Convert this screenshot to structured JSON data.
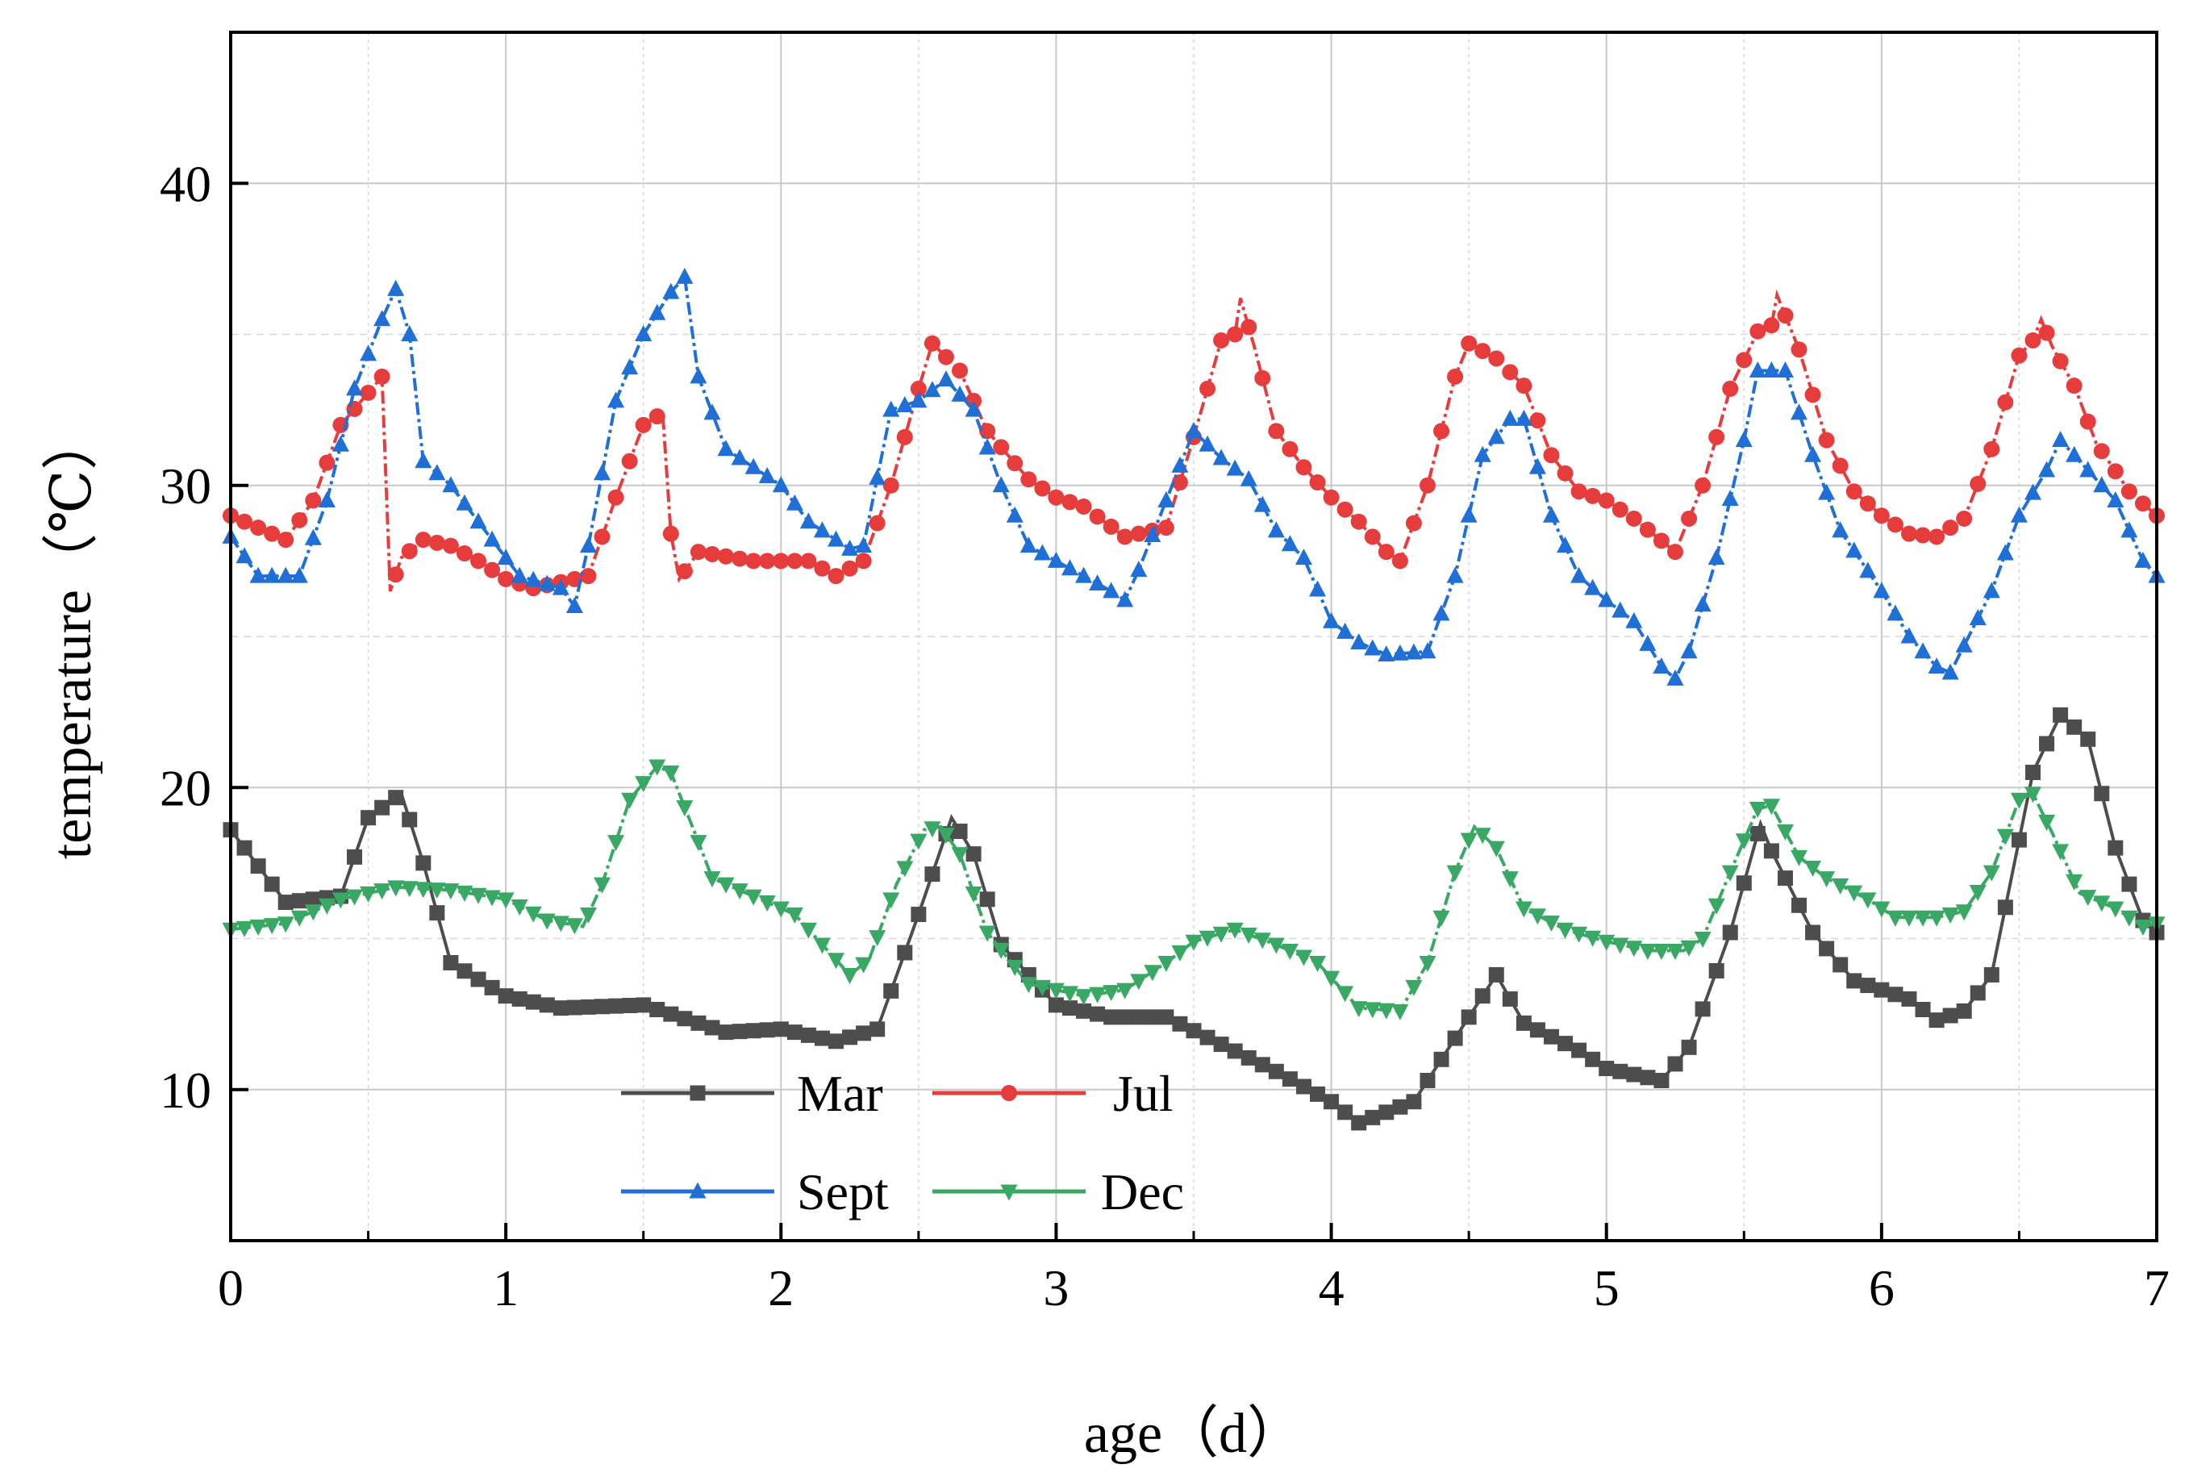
{
  "chart_data": {
    "type": "line",
    "title": "",
    "xlabel": "age（d）",
    "ylabel": "temperature（℃）",
    "xlim": [
      0,
      7
    ],
    "ylim": [
      5,
      45
    ],
    "xticks": [
      0,
      1,
      2,
      3,
      4,
      5,
      6,
      7
    ],
    "yticks": [
      10,
      20,
      30,
      40
    ],
    "grid": true,
    "legend_position": "bottom-center",
    "series": [
      {
        "name": "Mar",
        "color": "#4d4d4d",
        "marker": "square",
        "points": [
          [
            0,
            18.6
          ],
          [
            0.2,
            16.2
          ],
          [
            0.4,
            16.4
          ],
          [
            0.5,
            19.0
          ],
          [
            0.62,
            19.8
          ],
          [
            0.7,
            17.5
          ],
          [
            0.8,
            14.2
          ],
          [
            1.0,
            13.1
          ],
          [
            1.2,
            12.7
          ],
          [
            1.5,
            12.8
          ],
          [
            1.8,
            11.9
          ],
          [
            2.0,
            12.0
          ],
          [
            2.2,
            11.6
          ],
          [
            2.35,
            12.0
          ],
          [
            2.5,
            15.8
          ],
          [
            2.62,
            19.0
          ],
          [
            2.7,
            17.8
          ],
          [
            2.8,
            14.8
          ],
          [
            3.0,
            12.8
          ],
          [
            3.2,
            12.4
          ],
          [
            3.4,
            12.4
          ],
          [
            3.6,
            11.5
          ],
          [
            3.8,
            10.6
          ],
          [
            4.0,
            9.6
          ],
          [
            4.1,
            8.9
          ],
          [
            4.3,
            9.6
          ],
          [
            4.5,
            12.4
          ],
          [
            4.6,
            13.8
          ],
          [
            4.7,
            12.2
          ],
          [
            4.9,
            11.3
          ],
          [
            5.0,
            10.7
          ],
          [
            5.2,
            10.3
          ],
          [
            5.3,
            11.4
          ],
          [
            5.45,
            15.2
          ],
          [
            5.56,
            18.8
          ],
          [
            5.6,
            17.9
          ],
          [
            5.75,
            15.2
          ],
          [
            5.9,
            13.6
          ],
          [
            6.1,
            13.0
          ],
          [
            6.2,
            12.3
          ],
          [
            6.3,
            12.6
          ],
          [
            6.4,
            13.8
          ],
          [
            6.55,
            20.5
          ],
          [
            6.65,
            22.4
          ],
          [
            6.75,
            21.6
          ],
          [
            6.85,
            18.0
          ],
          [
            6.95,
            15.6
          ],
          [
            7.0,
            15.2
          ]
        ]
      },
      {
        "name": "Jul",
        "color": "#e63c3c",
        "marker": "circle",
        "points": [
          [
            0,
            29.0
          ],
          [
            0.2,
            28.2
          ],
          [
            0.3,
            29.5
          ],
          [
            0.4,
            32.0
          ],
          [
            0.55,
            33.6
          ],
          [
            0.58,
            26.5
          ],
          [
            0.62,
            27.6
          ],
          [
            0.7,
            28.2
          ],
          [
            0.8,
            28.0
          ],
          [
            0.9,
            27.5
          ],
          [
            1.0,
            26.9
          ],
          [
            1.1,
            26.6
          ],
          [
            1.3,
            27.0
          ],
          [
            1.4,
            29.6
          ],
          [
            1.5,
            32.0
          ],
          [
            1.57,
            32.4
          ],
          [
            1.6,
            28.4
          ],
          [
            1.63,
            26.9
          ],
          [
            1.7,
            27.8
          ],
          [
            1.9,
            27.5
          ],
          [
            2.1,
            27.5
          ],
          [
            2.2,
            27.0
          ],
          [
            2.3,
            27.5
          ],
          [
            2.4,
            30.0
          ],
          [
            2.5,
            33.2
          ],
          [
            2.55,
            34.7
          ],
          [
            2.65,
            33.8
          ],
          [
            2.75,
            31.8
          ],
          [
            2.9,
            30.2
          ],
          [
            3.0,
            29.6
          ],
          [
            3.1,
            29.3
          ],
          [
            3.25,
            28.3
          ],
          [
            3.4,
            28.6
          ],
          [
            3.5,
            31.6
          ],
          [
            3.6,
            34.8
          ],
          [
            3.65,
            35.0
          ],
          [
            3.67,
            36.2
          ],
          [
            3.72,
            34.6
          ],
          [
            3.8,
            31.8
          ],
          [
            3.9,
            30.6
          ],
          [
            4.0,
            29.6
          ],
          [
            4.1,
            28.8
          ],
          [
            4.2,
            27.8
          ],
          [
            4.25,
            27.5
          ],
          [
            4.35,
            30.0
          ],
          [
            4.45,
            33.6
          ],
          [
            4.5,
            34.7
          ],
          [
            4.6,
            34.2
          ],
          [
            4.7,
            33.3
          ],
          [
            4.8,
            31.0
          ],
          [
            4.9,
            29.8
          ],
          [
            5.0,
            29.5
          ],
          [
            5.1,
            28.9
          ],
          [
            5.25,
            27.8
          ],
          [
            5.35,
            30.0
          ],
          [
            5.45,
            33.2
          ],
          [
            5.55,
            35.1
          ],
          [
            5.6,
            35.3
          ],
          [
            5.62,
            36.3
          ],
          [
            5.7,
            34.5
          ],
          [
            5.8,
            31.5
          ],
          [
            5.9,
            29.8
          ],
          [
            6.0,
            29.0
          ],
          [
            6.1,
            28.4
          ],
          [
            6.2,
            28.3
          ],
          [
            6.3,
            28.9
          ],
          [
            6.4,
            31.2
          ],
          [
            6.5,
            34.3
          ],
          [
            6.55,
            34.8
          ],
          [
            6.58,
            35.5
          ],
          [
            6.62,
            34.6
          ],
          [
            6.7,
            33.3
          ],
          [
            6.78,
            31.4
          ],
          [
            6.9,
            29.8
          ],
          [
            7.0,
            29.0
          ]
        ]
      },
      {
        "name": "Sept",
        "color": "#1f6fd6",
        "marker": "triangle-up",
        "points": [
          [
            0,
            28.3
          ],
          [
            0.1,
            27.0
          ],
          [
            0.25,
            27.0
          ],
          [
            0.35,
            29.5
          ],
          [
            0.45,
            33.2
          ],
          [
            0.55,
            35.5
          ],
          [
            0.6,
            36.5
          ],
          [
            0.65,
            35.0
          ],
          [
            0.7,
            30.8
          ],
          [
            0.8,
            30.0
          ],
          [
            0.95,
            28.2
          ],
          [
            1.05,
            27.0
          ],
          [
            1.2,
            26.6
          ],
          [
            1.25,
            26.0
          ],
          [
            1.3,
            28.0
          ],
          [
            1.4,
            32.8
          ],
          [
            1.5,
            35.0
          ],
          [
            1.6,
            36.4
          ],
          [
            1.65,
            36.9
          ],
          [
            1.7,
            33.6
          ],
          [
            1.8,
            31.2
          ],
          [
            1.9,
            30.6
          ],
          [
            2.0,
            30.0
          ],
          [
            2.1,
            28.8
          ],
          [
            2.25,
            27.9
          ],
          [
            2.3,
            28.0
          ],
          [
            2.4,
            32.5
          ],
          [
            2.5,
            32.8
          ],
          [
            2.6,
            33.5
          ],
          [
            2.7,
            32.5
          ],
          [
            2.8,
            30.0
          ],
          [
            2.9,
            28.0
          ],
          [
            3.0,
            27.5
          ],
          [
            3.1,
            27.0
          ],
          [
            3.2,
            26.5
          ],
          [
            3.25,
            26.2
          ],
          [
            3.3,
            27.2
          ],
          [
            3.4,
            29.5
          ],
          [
            3.5,
            31.8
          ],
          [
            3.6,
            30.9
          ],
          [
            3.7,
            30.2
          ],
          [
            3.8,
            28.5
          ],
          [
            3.9,
            27.6
          ],
          [
            4.0,
            25.5
          ],
          [
            4.1,
            24.8
          ],
          [
            4.2,
            24.4
          ],
          [
            4.35,
            24.5
          ],
          [
            4.45,
            27.0
          ],
          [
            4.55,
            31.0
          ],
          [
            4.65,
            32.2
          ],
          [
            4.7,
            32.2
          ],
          [
            4.8,
            29.0
          ],
          [
            4.9,
            27.0
          ],
          [
            5.0,
            26.2
          ],
          [
            5.1,
            25.5
          ],
          [
            5.2,
            24.0
          ],
          [
            5.25,
            23.6
          ],
          [
            5.3,
            24.5
          ],
          [
            5.4,
            27.6
          ],
          [
            5.5,
            31.5
          ],
          [
            5.55,
            33.8
          ],
          [
            5.65,
            33.8
          ],
          [
            5.75,
            31.0
          ],
          [
            5.85,
            28.5
          ],
          [
            6.0,
            26.5
          ],
          [
            6.1,
            25.0
          ],
          [
            6.2,
            24.0
          ],
          [
            6.25,
            23.8
          ],
          [
            6.3,
            24.7
          ],
          [
            6.4,
            26.5
          ],
          [
            6.5,
            29.0
          ],
          [
            6.6,
            30.5
          ],
          [
            6.65,
            31.5
          ],
          [
            6.75,
            30.5
          ],
          [
            6.85,
            29.5
          ],
          [
            6.95,
            27.5
          ],
          [
            7.0,
            27.0
          ]
        ]
      },
      {
        "name": "Dec",
        "color": "#3aa865",
        "marker": "triangle-down",
        "points": [
          [
            0,
            15.3
          ],
          [
            0.2,
            15.5
          ],
          [
            0.4,
            16.3
          ],
          [
            0.6,
            16.7
          ],
          [
            0.8,
            16.6
          ],
          [
            1.0,
            16.3
          ],
          [
            1.15,
            15.6
          ],
          [
            1.28,
            15.4
          ],
          [
            1.35,
            16.8
          ],
          [
            1.45,
            19.6
          ],
          [
            1.55,
            20.7
          ],
          [
            1.6,
            20.5
          ],
          [
            1.7,
            18.2
          ],
          [
            1.75,
            17.0
          ],
          [
            1.9,
            16.4
          ],
          [
            2.05,
            15.8
          ],
          [
            2.15,
            14.8
          ],
          [
            2.25,
            13.8
          ],
          [
            2.32,
            14.3
          ],
          [
            2.42,
            16.8
          ],
          [
            2.52,
            18.6
          ],
          [
            2.58,
            18.7
          ],
          [
            2.65,
            17.8
          ],
          [
            2.75,
            15.2
          ],
          [
            2.9,
            13.5
          ],
          [
            3.1,
            13.1
          ],
          [
            3.25,
            13.3
          ],
          [
            3.4,
            14.2
          ],
          [
            3.5,
            14.9
          ],
          [
            3.65,
            15.3
          ],
          [
            3.8,
            14.8
          ],
          [
            3.95,
            14.2
          ],
          [
            4.1,
            12.7
          ],
          [
            4.25,
            12.6
          ],
          [
            4.35,
            14.2
          ],
          [
            4.45,
            17.2
          ],
          [
            4.52,
            18.7
          ],
          [
            4.6,
            18.0
          ],
          [
            4.7,
            16.0
          ],
          [
            4.85,
            15.3
          ],
          [
            5.0,
            14.9
          ],
          [
            5.15,
            14.6
          ],
          [
            5.28,
            14.6
          ],
          [
            5.35,
            15.0
          ],
          [
            5.45,
            17.2
          ],
          [
            5.55,
            19.3
          ],
          [
            5.6,
            19.4
          ],
          [
            5.7,
            17.7
          ],
          [
            5.8,
            17.0
          ],
          [
            5.95,
            16.3
          ],
          [
            6.05,
            15.7
          ],
          [
            6.2,
            15.7
          ],
          [
            6.3,
            15.9
          ],
          [
            6.4,
            17.2
          ],
          [
            6.5,
            19.6
          ],
          [
            6.55,
            19.8
          ],
          [
            6.62,
            18.5
          ],
          [
            6.72,
            16.5
          ],
          [
            6.85,
            16.0
          ],
          [
            6.95,
            15.4
          ],
          [
            7.0,
            15.5
          ]
        ]
      }
    ],
    "legend": [
      {
        "label": "Mar"
      },
      {
        "label": "Jul"
      },
      {
        "label": "Sept"
      },
      {
        "label": "Dec"
      }
    ]
  }
}
